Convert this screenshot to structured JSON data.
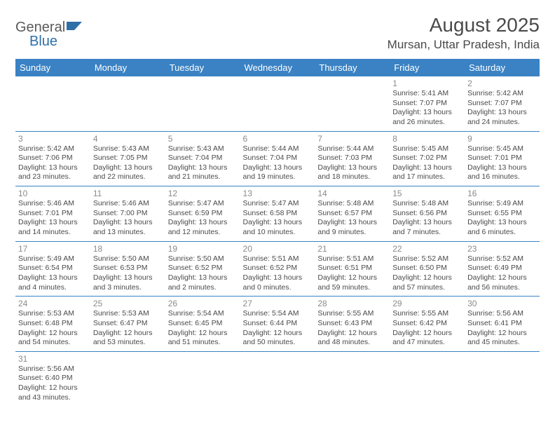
{
  "logo": {
    "general": "General",
    "blue": "Blue"
  },
  "title": "August 2025",
  "location": "Mursan, Uttar Pradesh, India",
  "colors": {
    "header_bg": "#3a82c4",
    "header_text": "#ffffff",
    "border": "#3a82c4",
    "daynum": "#8a8a8a",
    "body_text": "#4a4a4a",
    "logo_gray": "#5a5a5a",
    "logo_blue": "#2f6fa8"
  },
  "day_headers": [
    "Sunday",
    "Monday",
    "Tuesday",
    "Wednesday",
    "Thursday",
    "Friday",
    "Saturday"
  ],
  "weeks": [
    [
      null,
      null,
      null,
      null,
      null,
      {
        "n": "1",
        "sr": "5:41 AM",
        "ss": "7:07 PM",
        "dl": "13 hours and 26 minutes."
      },
      {
        "n": "2",
        "sr": "5:42 AM",
        "ss": "7:07 PM",
        "dl": "13 hours and 24 minutes."
      }
    ],
    [
      {
        "n": "3",
        "sr": "5:42 AM",
        "ss": "7:06 PM",
        "dl": "13 hours and 23 minutes."
      },
      {
        "n": "4",
        "sr": "5:43 AM",
        "ss": "7:05 PM",
        "dl": "13 hours and 22 minutes."
      },
      {
        "n": "5",
        "sr": "5:43 AM",
        "ss": "7:04 PM",
        "dl": "13 hours and 21 minutes."
      },
      {
        "n": "6",
        "sr": "5:44 AM",
        "ss": "7:04 PM",
        "dl": "13 hours and 19 minutes."
      },
      {
        "n": "7",
        "sr": "5:44 AM",
        "ss": "7:03 PM",
        "dl": "13 hours and 18 minutes."
      },
      {
        "n": "8",
        "sr": "5:45 AM",
        "ss": "7:02 PM",
        "dl": "13 hours and 17 minutes."
      },
      {
        "n": "9",
        "sr": "5:45 AM",
        "ss": "7:01 PM",
        "dl": "13 hours and 16 minutes."
      }
    ],
    [
      {
        "n": "10",
        "sr": "5:46 AM",
        "ss": "7:01 PM",
        "dl": "13 hours and 14 minutes."
      },
      {
        "n": "11",
        "sr": "5:46 AM",
        "ss": "7:00 PM",
        "dl": "13 hours and 13 minutes."
      },
      {
        "n": "12",
        "sr": "5:47 AM",
        "ss": "6:59 PM",
        "dl": "13 hours and 12 minutes."
      },
      {
        "n": "13",
        "sr": "5:47 AM",
        "ss": "6:58 PM",
        "dl": "13 hours and 10 minutes."
      },
      {
        "n": "14",
        "sr": "5:48 AM",
        "ss": "6:57 PM",
        "dl": "13 hours and 9 minutes."
      },
      {
        "n": "15",
        "sr": "5:48 AM",
        "ss": "6:56 PM",
        "dl": "13 hours and 7 minutes."
      },
      {
        "n": "16",
        "sr": "5:49 AM",
        "ss": "6:55 PM",
        "dl": "13 hours and 6 minutes."
      }
    ],
    [
      {
        "n": "17",
        "sr": "5:49 AM",
        "ss": "6:54 PM",
        "dl": "13 hours and 4 minutes."
      },
      {
        "n": "18",
        "sr": "5:50 AM",
        "ss": "6:53 PM",
        "dl": "13 hours and 3 minutes."
      },
      {
        "n": "19",
        "sr": "5:50 AM",
        "ss": "6:52 PM",
        "dl": "13 hours and 2 minutes."
      },
      {
        "n": "20",
        "sr": "5:51 AM",
        "ss": "6:52 PM",
        "dl": "13 hours and 0 minutes."
      },
      {
        "n": "21",
        "sr": "5:51 AM",
        "ss": "6:51 PM",
        "dl": "12 hours and 59 minutes."
      },
      {
        "n": "22",
        "sr": "5:52 AM",
        "ss": "6:50 PM",
        "dl": "12 hours and 57 minutes."
      },
      {
        "n": "23",
        "sr": "5:52 AM",
        "ss": "6:49 PM",
        "dl": "12 hours and 56 minutes."
      }
    ],
    [
      {
        "n": "24",
        "sr": "5:53 AM",
        "ss": "6:48 PM",
        "dl": "12 hours and 54 minutes."
      },
      {
        "n": "25",
        "sr": "5:53 AM",
        "ss": "6:47 PM",
        "dl": "12 hours and 53 minutes."
      },
      {
        "n": "26",
        "sr": "5:54 AM",
        "ss": "6:45 PM",
        "dl": "12 hours and 51 minutes."
      },
      {
        "n": "27",
        "sr": "5:54 AM",
        "ss": "6:44 PM",
        "dl": "12 hours and 50 minutes."
      },
      {
        "n": "28",
        "sr": "5:55 AM",
        "ss": "6:43 PM",
        "dl": "12 hours and 48 minutes."
      },
      {
        "n": "29",
        "sr": "5:55 AM",
        "ss": "6:42 PM",
        "dl": "12 hours and 47 minutes."
      },
      {
        "n": "30",
        "sr": "5:56 AM",
        "ss": "6:41 PM",
        "dl": "12 hours and 45 minutes."
      }
    ],
    [
      {
        "n": "31",
        "sr": "5:56 AM",
        "ss": "6:40 PM",
        "dl": "12 hours and 43 minutes."
      },
      null,
      null,
      null,
      null,
      null,
      null
    ]
  ],
  "labels": {
    "sunrise": "Sunrise: ",
    "sunset": "Sunset: ",
    "daylight": "Daylight: "
  }
}
